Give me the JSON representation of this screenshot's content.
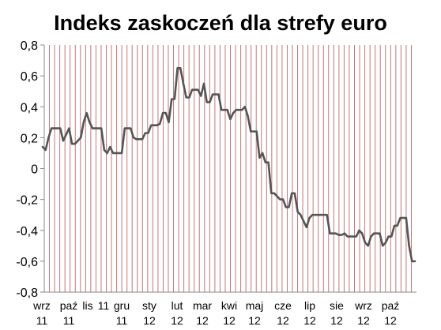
{
  "chart_data": {
    "type": "line",
    "title": "Indeks zaskoczeń dla strefy euro",
    "xlabel": "",
    "ylabel": "",
    "ylim": [
      -0.8,
      0.8
    ],
    "yticks": [
      "0,8",
      "0,6",
      "0,4",
      "0,2",
      "0",
      "-0,2",
      "-0,4",
      "-0,6",
      "-0,8"
    ],
    "ytick_values": [
      0.8,
      0.6,
      0.4,
      0.2,
      0,
      -0.2,
      -0.4,
      -0.6,
      -0.8
    ],
    "xtick_labels": [
      {
        "line1": "wrz",
        "line2": "11"
      },
      {
        "line1": "paź",
        "line2": "11"
      },
      {
        "line1": "lis",
        "line2": ""
      },
      {
        "line1": "11",
        "line2": ""
      },
      {
        "line1": "gru",
        "line2": "11"
      },
      {
        "line1": "sty",
        "line2": "12"
      },
      {
        "line1": "lut",
        "line2": "12"
      },
      {
        "line1": "mar",
        "line2": "12"
      },
      {
        "line1": "kwi",
        "line2": "12"
      },
      {
        "line1": "maj",
        "line2": "12"
      },
      {
        "line1": "cze",
        "line2": "12"
      },
      {
        "line1": "lip",
        "line2": "12"
      },
      {
        "line1": "sie",
        "line2": "12"
      },
      {
        "line1": "wrz",
        "line2": "12"
      },
      {
        "line1": "paź",
        "line2": "12"
      }
    ],
    "grid": "vertical",
    "colors": {
      "line": "#555555",
      "grid": "#c07878",
      "axis": "#888888"
    },
    "series": [
      {
        "name": "",
        "values": [
          0.14,
          0.12,
          0.2,
          0.26,
          0.26,
          0.26,
          0.26,
          0.18,
          0.22,
          0.26,
          0.16,
          0.16,
          0.18,
          0.2,
          0.3,
          0.36,
          0.3,
          0.26,
          0.26,
          0.26,
          0.26,
          0.12,
          0.1,
          0.14,
          0.1,
          0.1,
          0.1,
          0.1,
          0.26,
          0.26,
          0.26,
          0.2,
          0.19,
          0.19,
          0.19,
          0.23,
          0.23,
          0.28,
          0.28,
          0.28,
          0.29,
          0.36,
          0.36,
          0.3,
          0.45,
          0.45,
          0.65,
          0.65,
          0.55,
          0.46,
          0.46,
          0.51,
          0.51,
          0.51,
          0.47,
          0.55,
          0.43,
          0.43,
          0.48,
          0.48,
          0.48,
          0.38,
          0.38,
          0.38,
          0.32,
          0.36,
          0.38,
          0.38,
          0.38,
          0.4,
          0.34,
          0.24,
          0.24,
          0.24,
          0.07,
          0.1,
          0.04,
          0.04,
          -0.16,
          -0.16,
          -0.18,
          -0.2,
          -0.2,
          -0.25,
          -0.25,
          -0.16,
          -0.16,
          -0.28,
          -0.3,
          -0.34,
          -0.38,
          -0.32,
          -0.3,
          -0.3,
          -0.3,
          -0.3,
          -0.3,
          -0.3,
          -0.42,
          -0.42,
          -0.42,
          -0.43,
          -0.43,
          -0.42,
          -0.44,
          -0.44,
          -0.44,
          -0.44,
          -0.4,
          -0.42,
          -0.48,
          -0.5,
          -0.44,
          -0.42,
          -0.42,
          -0.42,
          -0.5,
          -0.48,
          -0.44,
          -0.44,
          -0.37,
          -0.37,
          -0.32,
          -0.32,
          -0.32,
          -0.5,
          -0.6,
          -0.6
        ]
      }
    ]
  }
}
